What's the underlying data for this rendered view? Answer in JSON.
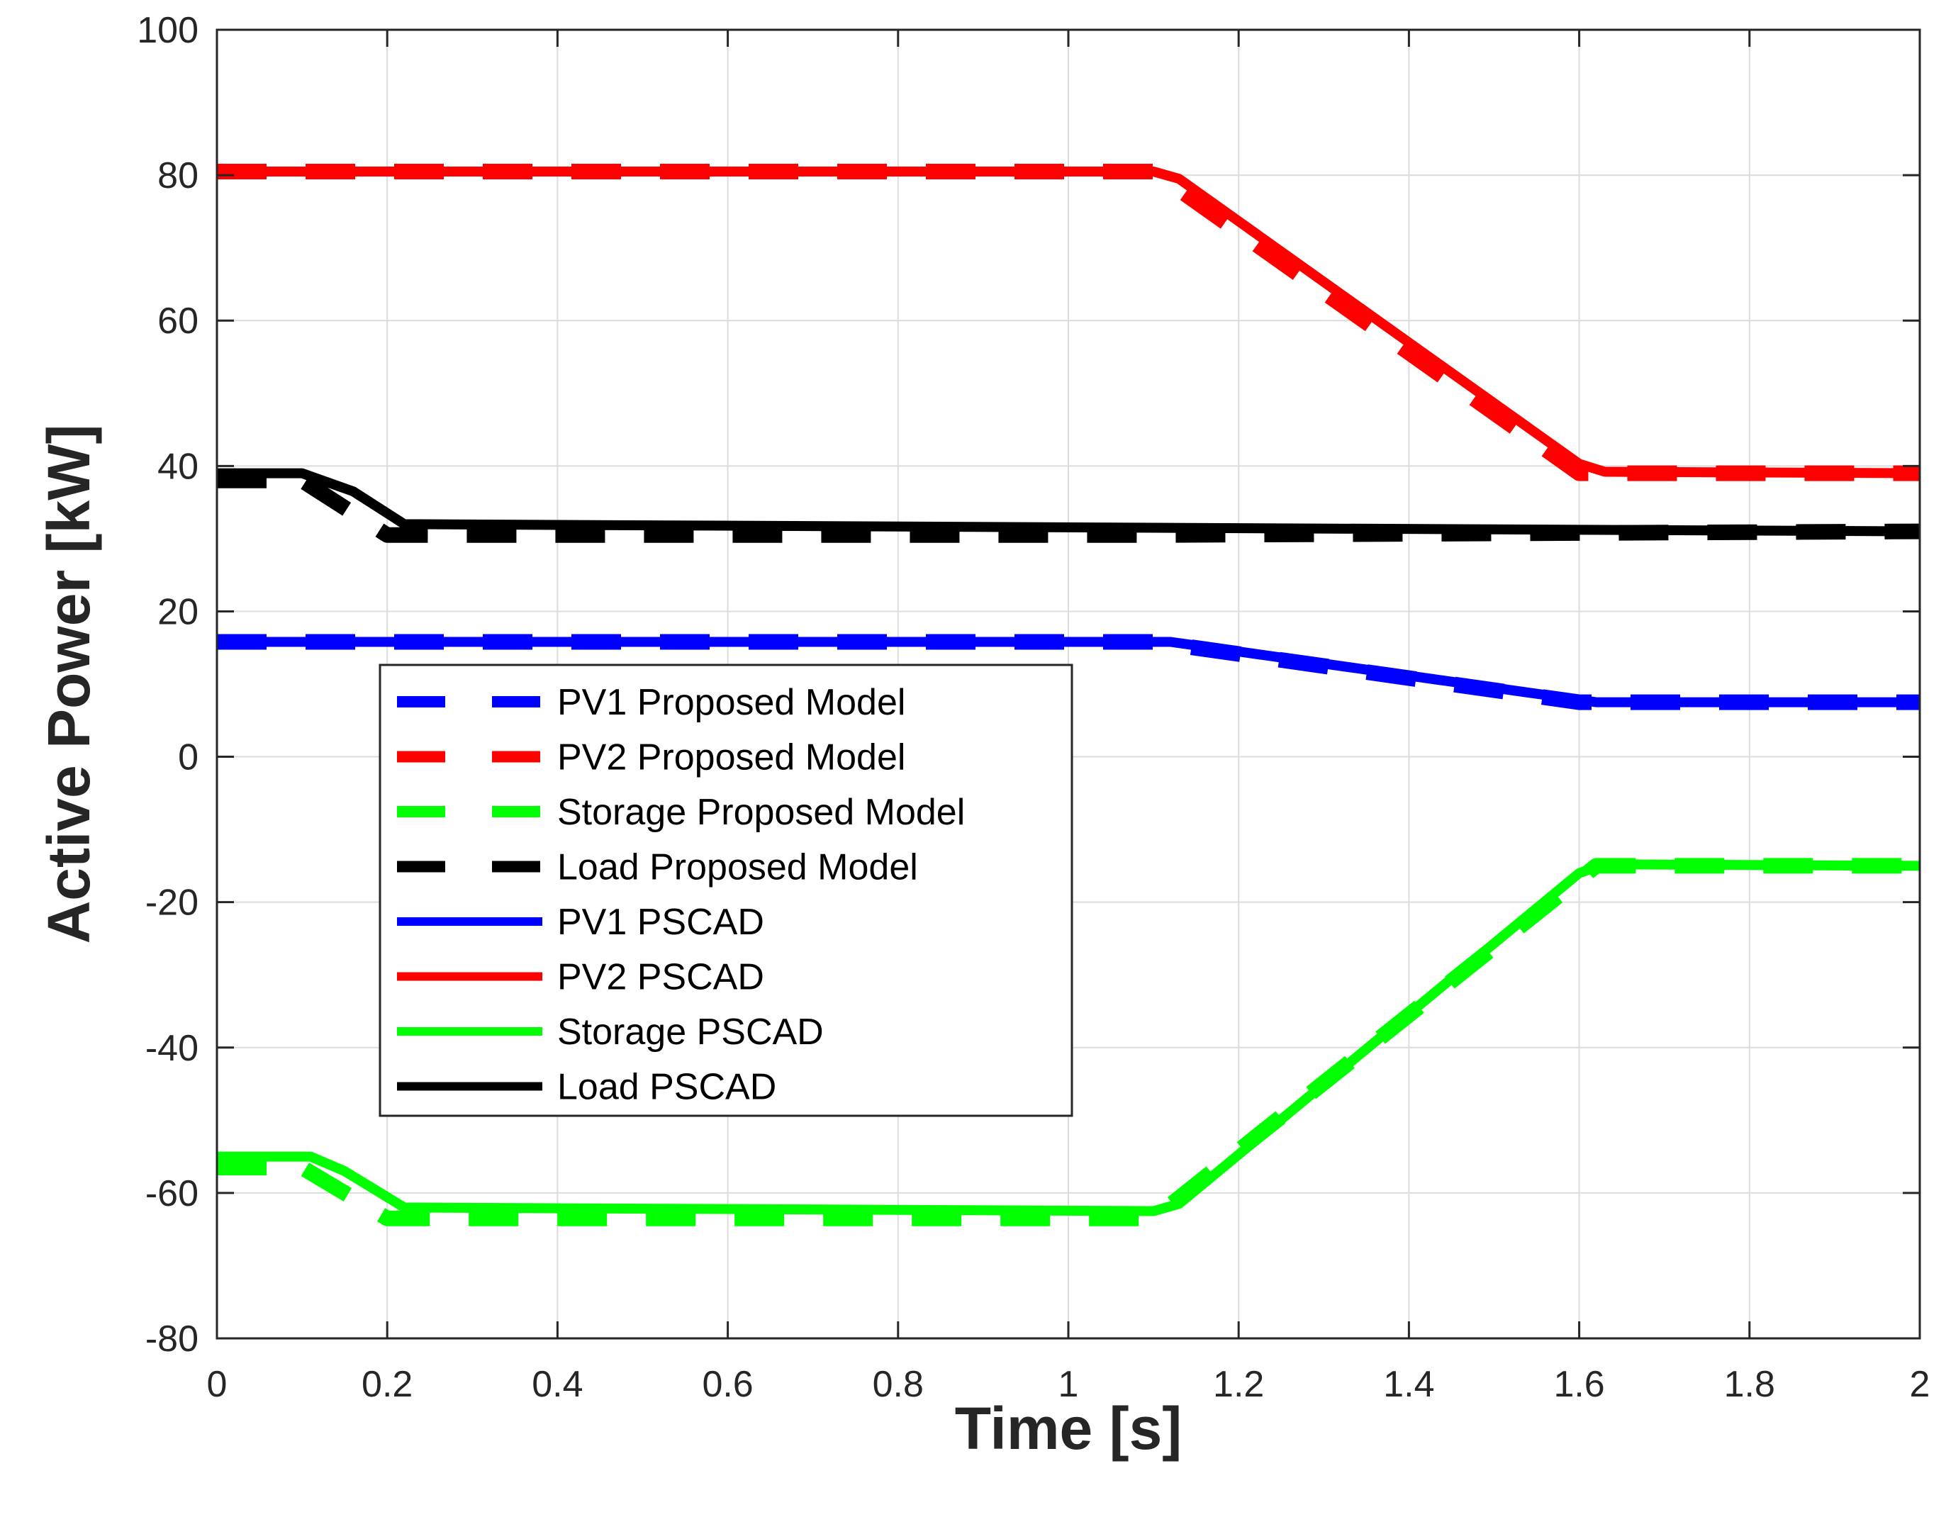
{
  "chart_data": {
    "type": "line",
    "title": "",
    "xlabel": "Time [s]",
    "ylabel": "Active Power [kW]",
    "xlim": [
      0,
      2
    ],
    "ylim": [
      -80,
      100
    ],
    "xticks": [
      0,
      0.2,
      0.4,
      0.6,
      0.8,
      1,
      1.2,
      1.4,
      1.6,
      1.8,
      2
    ],
    "xtick_labels": [
      "0",
      "0.2",
      "0.4",
      "0.6",
      "0.8",
      "1",
      "1.2",
      "1.4",
      "1.6",
      "1.8",
      "2"
    ],
    "yticks": [
      -80,
      -60,
      -40,
      -20,
      0,
      20,
      40,
      60,
      80,
      100
    ],
    "ytick_labels": [
      "-80",
      "-60",
      "-40",
      "-20",
      "0",
      "20",
      "40",
      "60",
      "80",
      "100"
    ],
    "grid": true,
    "legend_position": "center-left",
    "series": [
      {
        "name": "PV1 Proposed Model",
        "color": "#0000ff",
        "style": "dashed",
        "x": [
          0,
          1.1,
          1.6,
          2
        ],
        "y": [
          15.8,
          15.8,
          7.5,
          7.5
        ]
      },
      {
        "name": "PV2 Proposed Model",
        "color": "#ff0000",
        "style": "dashed",
        "x": [
          0,
          1.1,
          1.6,
          2
        ],
        "y": [
          80.5,
          80.5,
          39,
          39
        ]
      },
      {
        "name": "Storage Proposed Model",
        "color": "#00ff00",
        "style": "dashed",
        "x": [
          0,
          0.1,
          0.2,
          1.1,
          1.62,
          2
        ],
        "y": [
          -56.5,
          -56.5,
          -63.5,
          -63.5,
          -15,
          -15
        ]
      },
      {
        "name": "Load Proposed Model",
        "color": "#000000",
        "style": "dashed",
        "x": [
          0,
          0.1,
          0.2,
          1.1,
          2
        ],
        "y": [
          38,
          38,
          30.5,
          30.5,
          31
        ]
      },
      {
        "name": "PV1 PSCAD",
        "color": "#0000ff",
        "style": "solid",
        "x": [
          0,
          1.12,
          1.15,
          1.62,
          2
        ],
        "y": [
          15.8,
          15.8,
          15.3,
          7.5,
          7.5
        ]
      },
      {
        "name": "PV2 PSCAD",
        "color": "#ff0000",
        "style": "solid",
        "x": [
          0,
          1.1,
          1.13,
          1.6,
          1.63,
          2
        ],
        "y": [
          80.5,
          80.5,
          79.5,
          40.3,
          39.2,
          39
        ]
      },
      {
        "name": "Storage PSCAD",
        "color": "#00ff00",
        "style": "solid",
        "x": [
          0,
          0.11,
          0.15,
          0.22,
          1.1,
          1.13,
          1.6,
          1.63,
          2
        ],
        "y": [
          -55,
          -55,
          -57,
          -62,
          -62.5,
          -61.5,
          -16,
          -14.8,
          -15
        ]
      },
      {
        "name": "Load PSCAD",
        "color": "#000000",
        "style": "solid",
        "x": [
          0,
          0.1,
          0.16,
          0.22,
          1.1,
          2
        ],
        "y": [
          39,
          39,
          36.5,
          32,
          31.5,
          31
        ]
      }
    ]
  }
}
